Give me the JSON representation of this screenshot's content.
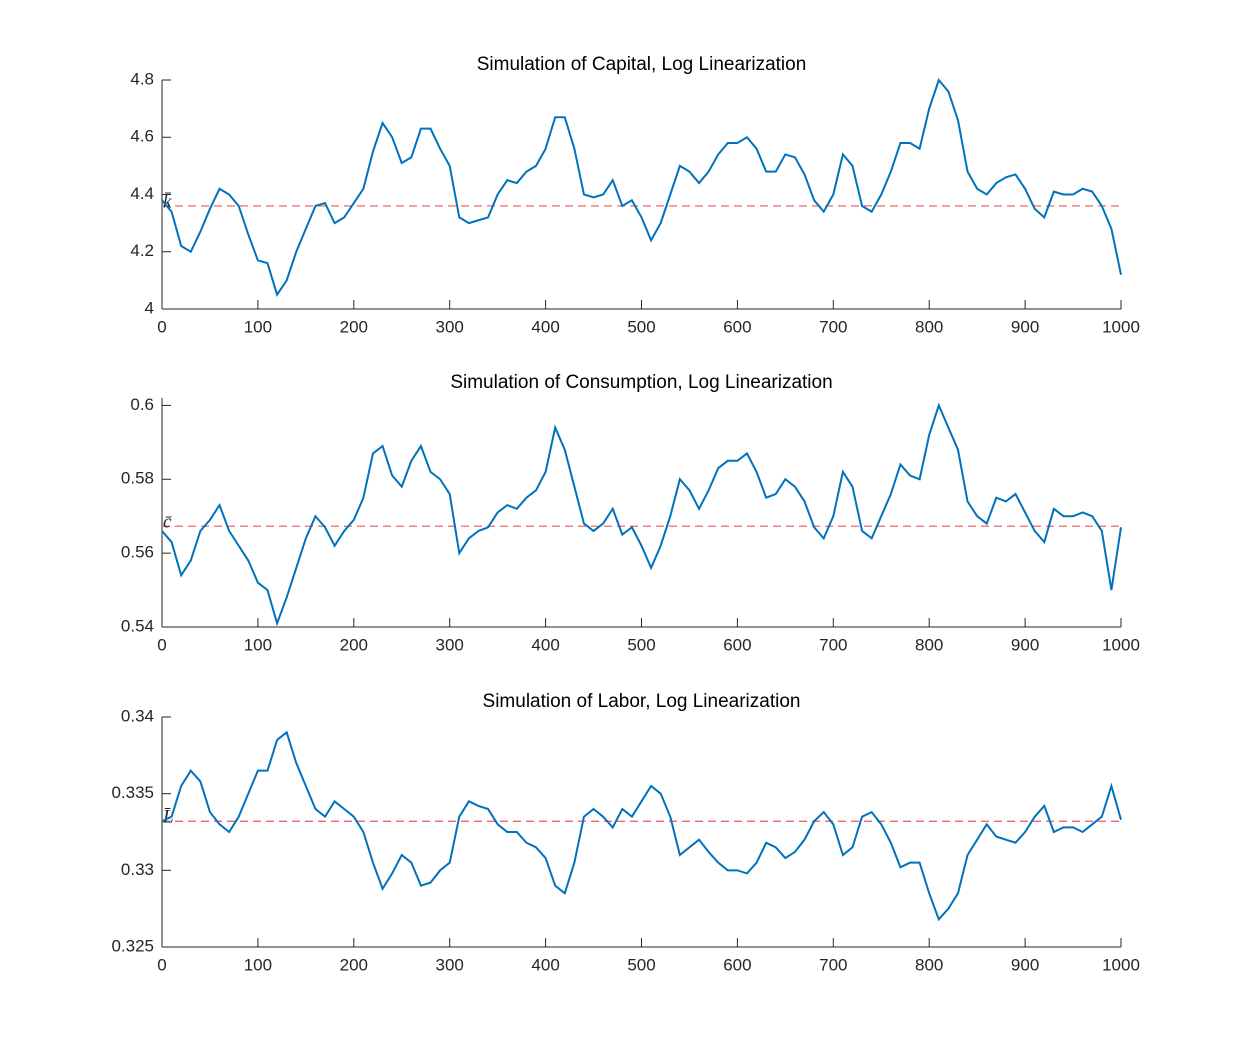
{
  "chart_data": [
    {
      "type": "line",
      "title": "Simulation of Capital, Log Linearization",
      "x": [
        0,
        10,
        20,
        30,
        40,
        50,
        60,
        70,
        80,
        90,
        100,
        110,
        120,
        130,
        140,
        150,
        160,
        170,
        180,
        190,
        200,
        210,
        220,
        230,
        240,
        250,
        260,
        270,
        280,
        290,
        300,
        310,
        320,
        330,
        340,
        350,
        360,
        370,
        380,
        390,
        400,
        410,
        420,
        430,
        440,
        450,
        460,
        470,
        480,
        490,
        500,
        510,
        520,
        530,
        540,
        550,
        560,
        570,
        580,
        590,
        600,
        610,
        620,
        630,
        640,
        650,
        660,
        670,
        680,
        690,
        700,
        710,
        720,
        730,
        740,
        750,
        760,
        770,
        780,
        790,
        800,
        810,
        820,
        830,
        840,
        850,
        860,
        870,
        880,
        890,
        900,
        910,
        920,
        930,
        940,
        950,
        960,
        970,
        980,
        990,
        1000
      ],
      "series": [
        {
          "color": "#0072bd",
          "values": [
            4.38,
            4.34,
            4.22,
            4.2,
            4.27,
            4.35,
            4.42,
            4.4,
            4.36,
            4.26,
            4.17,
            4.16,
            4.05,
            4.1,
            4.2,
            4.28,
            4.36,
            4.37,
            4.3,
            4.32,
            4.37,
            4.42,
            4.55,
            4.65,
            4.6,
            4.51,
            4.53,
            4.63,
            4.63,
            4.56,
            4.5,
            4.32,
            4.3,
            4.31,
            4.32,
            4.4,
            4.45,
            4.44,
            4.48,
            4.5,
            4.56,
            4.67,
            4.67,
            4.56,
            4.4,
            4.39,
            4.4,
            4.45,
            4.36,
            4.38,
            4.32,
            4.24,
            4.3,
            4.4,
            4.5,
            4.48,
            4.44,
            4.48,
            4.54,
            4.58,
            4.58,
            4.6,
            4.56,
            4.48,
            4.48,
            4.54,
            4.53,
            4.47,
            4.38,
            4.34,
            4.4,
            4.54,
            4.5,
            4.36,
            4.34,
            4.4,
            4.48,
            4.58,
            4.58,
            4.56,
            4.7,
            4.8,
            4.76,
            4.66,
            4.48,
            4.42,
            4.4,
            4.44,
            4.46,
            4.47,
            4.42,
            4.35,
            4.32,
            4.41,
            4.4,
            4.4,
            4.42,
            4.41,
            4.36,
            4.28,
            4.12
          ]
        }
      ],
      "steady_state": 4.36,
      "steady_color": "#e8595a",
      "steady_label": "k̄",
      "xlim": [
        0,
        1000
      ],
      "xticks": [
        0,
        100,
        200,
        300,
        400,
        500,
        600,
        700,
        800,
        900,
        1000
      ],
      "ylim": [
        4,
        4.8
      ],
      "yticks": [
        4,
        4.2,
        4.4,
        4.6,
        4.8
      ]
    },
    {
      "type": "line",
      "title": "Simulation of Consumption, Log Linearization",
      "x": [
        0,
        10,
        20,
        30,
        40,
        50,
        60,
        70,
        80,
        90,
        100,
        110,
        120,
        130,
        140,
        150,
        160,
        170,
        180,
        190,
        200,
        210,
        220,
        230,
        240,
        250,
        260,
        270,
        280,
        290,
        300,
        310,
        320,
        330,
        340,
        350,
        360,
        370,
        380,
        390,
        400,
        410,
        420,
        430,
        440,
        450,
        460,
        470,
        480,
        490,
        500,
        510,
        520,
        530,
        540,
        550,
        560,
        570,
        580,
        590,
        600,
        610,
        620,
        630,
        640,
        650,
        660,
        670,
        680,
        690,
        700,
        710,
        720,
        730,
        740,
        750,
        760,
        770,
        780,
        790,
        800,
        810,
        820,
        830,
        840,
        850,
        860,
        870,
        880,
        890,
        900,
        910,
        920,
        930,
        940,
        950,
        960,
        970,
        980,
        990,
        1000
      ],
      "series": [
        {
          "color": "#0072bd",
          "values": [
            0.566,
            0.563,
            0.554,
            0.558,
            0.566,
            0.569,
            0.573,
            0.566,
            0.562,
            0.558,
            0.552,
            0.55,
            0.541,
            0.548,
            0.556,
            0.564,
            0.57,
            0.567,
            0.562,
            0.566,
            0.569,
            0.575,
            0.587,
            0.589,
            0.581,
            0.578,
            0.585,
            0.589,
            0.582,
            0.58,
            0.576,
            0.56,
            0.564,
            0.566,
            0.567,
            0.571,
            0.573,
            0.572,
            0.575,
            0.577,
            0.582,
            0.594,
            0.588,
            0.578,
            0.568,
            0.566,
            0.568,
            0.572,
            0.565,
            0.567,
            0.562,
            0.556,
            0.562,
            0.57,
            0.58,
            0.577,
            0.572,
            0.577,
            0.583,
            0.585,
            0.585,
            0.587,
            0.582,
            0.575,
            0.576,
            0.58,
            0.578,
            0.574,
            0.567,
            0.564,
            0.57,
            0.582,
            0.578,
            0.566,
            0.564,
            0.57,
            0.576,
            0.584,
            0.581,
            0.58,
            0.592,
            0.6,
            0.594,
            0.588,
            0.574,
            0.57,
            0.568,
            0.575,
            0.574,
            0.576,
            0.571,
            0.566,
            0.563,
            0.572,
            0.57,
            0.57,
            0.571,
            0.57,
            0.566,
            0.55,
            0.567
          ]
        }
      ],
      "steady_state": 0.5673,
      "steady_color": "#e8595a",
      "steady_label": "c̄",
      "xlim": [
        0,
        1000
      ],
      "xticks": [
        0,
        100,
        200,
        300,
        400,
        500,
        600,
        700,
        800,
        900,
        1000
      ],
      "ylim": [
        0.54,
        0.602
      ],
      "yticks": [
        0.54,
        0.56,
        0.58,
        0.6
      ]
    },
    {
      "type": "line",
      "title": "Simulation of Labor, Log Linearization",
      "x": [
        0,
        10,
        20,
        30,
        40,
        50,
        60,
        70,
        80,
        90,
        100,
        110,
        120,
        130,
        140,
        150,
        160,
        170,
        180,
        190,
        200,
        210,
        220,
        230,
        240,
        250,
        260,
        270,
        280,
        290,
        300,
        310,
        320,
        330,
        340,
        350,
        360,
        370,
        380,
        390,
        400,
        410,
        420,
        430,
        440,
        450,
        460,
        470,
        480,
        490,
        500,
        510,
        520,
        530,
        540,
        550,
        560,
        570,
        580,
        590,
        600,
        610,
        620,
        630,
        640,
        650,
        660,
        670,
        680,
        690,
        700,
        710,
        720,
        730,
        740,
        750,
        760,
        770,
        780,
        790,
        800,
        810,
        820,
        830,
        840,
        850,
        860,
        870,
        880,
        890,
        900,
        910,
        920,
        930,
        940,
        950,
        960,
        970,
        980,
        990,
        1000
      ],
      "series": [
        {
          "color": "#0072bd",
          "values": [
            0.3332,
            0.3335,
            0.3355,
            0.3365,
            0.3358,
            0.3338,
            0.333,
            0.3325,
            0.3335,
            0.335,
            0.3365,
            0.3365,
            0.3385,
            0.339,
            0.337,
            0.3355,
            0.334,
            0.3335,
            0.3345,
            0.334,
            0.3335,
            0.3325,
            0.3305,
            0.3288,
            0.3298,
            0.331,
            0.3305,
            0.329,
            0.3292,
            0.33,
            0.3305,
            0.3335,
            0.3345,
            0.3342,
            0.334,
            0.333,
            0.3325,
            0.3325,
            0.3318,
            0.3315,
            0.3308,
            0.329,
            0.3285,
            0.3305,
            0.3335,
            0.334,
            0.3335,
            0.3328,
            0.334,
            0.3335,
            0.3345,
            0.3355,
            0.335,
            0.3335,
            0.331,
            0.3315,
            0.332,
            0.3312,
            0.3305,
            0.33,
            0.33,
            0.3298,
            0.3305,
            0.3318,
            0.3315,
            0.3308,
            0.3312,
            0.332,
            0.3332,
            0.3338,
            0.333,
            0.331,
            0.3315,
            0.3335,
            0.3338,
            0.333,
            0.3318,
            0.3302,
            0.3305,
            0.3305,
            0.3285,
            0.3268,
            0.3275,
            0.3285,
            0.331,
            0.332,
            0.333,
            0.3322,
            0.332,
            0.3318,
            0.3325,
            0.3335,
            0.3342,
            0.3325,
            0.3328,
            0.3328,
            0.3325,
            0.333,
            0.3335,
            0.3355,
            0.3333
          ]
        }
      ],
      "steady_state": 0.3332,
      "steady_color": "#e8595a",
      "steady_label": "L̄",
      "xlim": [
        0,
        1000
      ],
      "xticks": [
        0,
        100,
        200,
        300,
        400,
        500,
        600,
        700,
        800,
        900,
        1000
      ],
      "ylim": [
        0.325,
        0.34
      ],
      "yticks": [
        0.325,
        0.33,
        0.335,
        0.34
      ]
    }
  ]
}
